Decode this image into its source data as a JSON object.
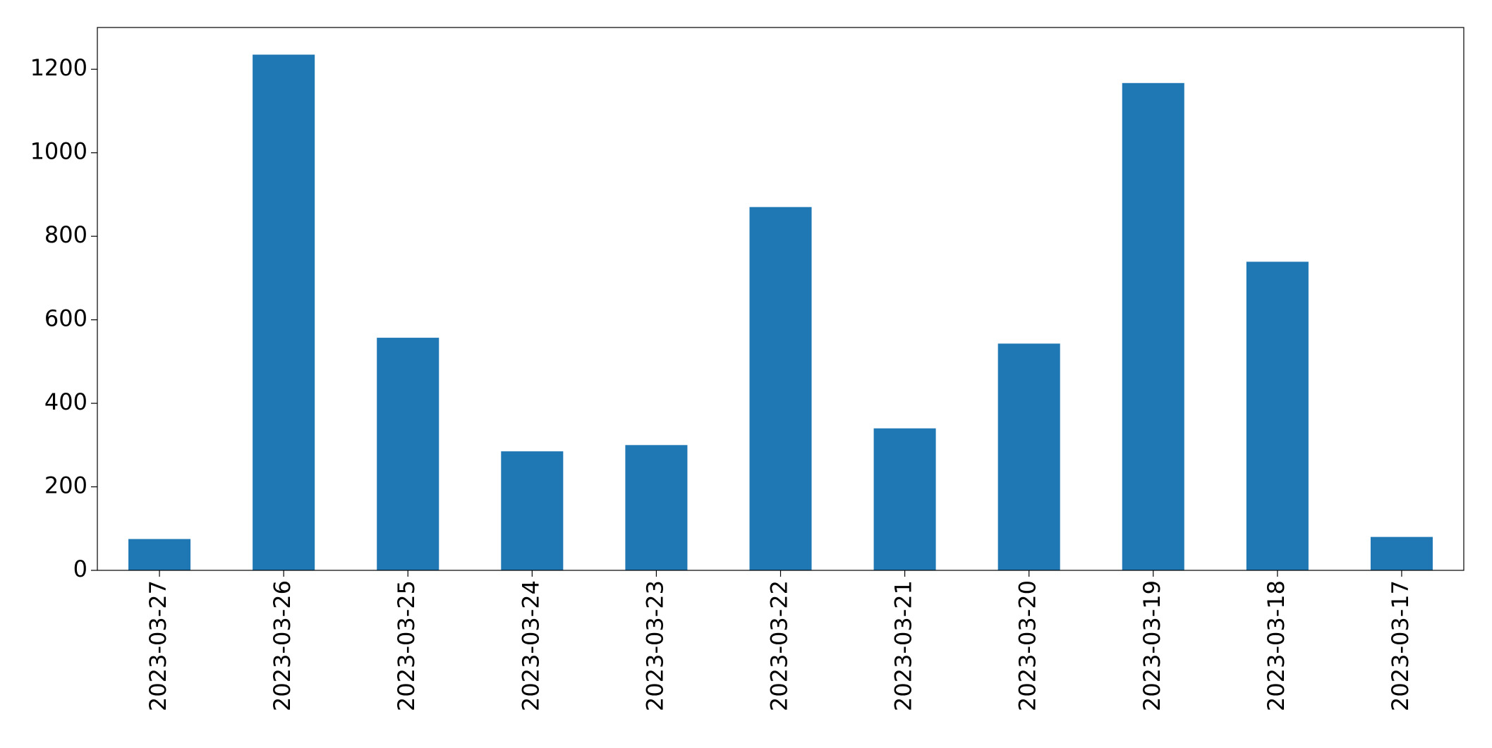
{
  "chart_data": {
    "type": "bar",
    "categories": [
      "2023-03-27",
      "2023-03-26",
      "2023-03-25",
      "2023-03-24",
      "2023-03-23",
      "2023-03-22",
      "2023-03-21",
      "2023-03-20",
      "2023-03-19",
      "2023-03-18",
      "2023-03-17"
    ],
    "values": [
      75,
      1235,
      557,
      285,
      300,
      870,
      340,
      543,
      1167,
      739,
      80
    ],
    "color": "#1f77b4",
    "ylim": [
      0,
      1300
    ],
    "yticks": [
      0,
      200,
      400,
      600,
      800,
      1000,
      1200
    ],
    "grid": false
  }
}
